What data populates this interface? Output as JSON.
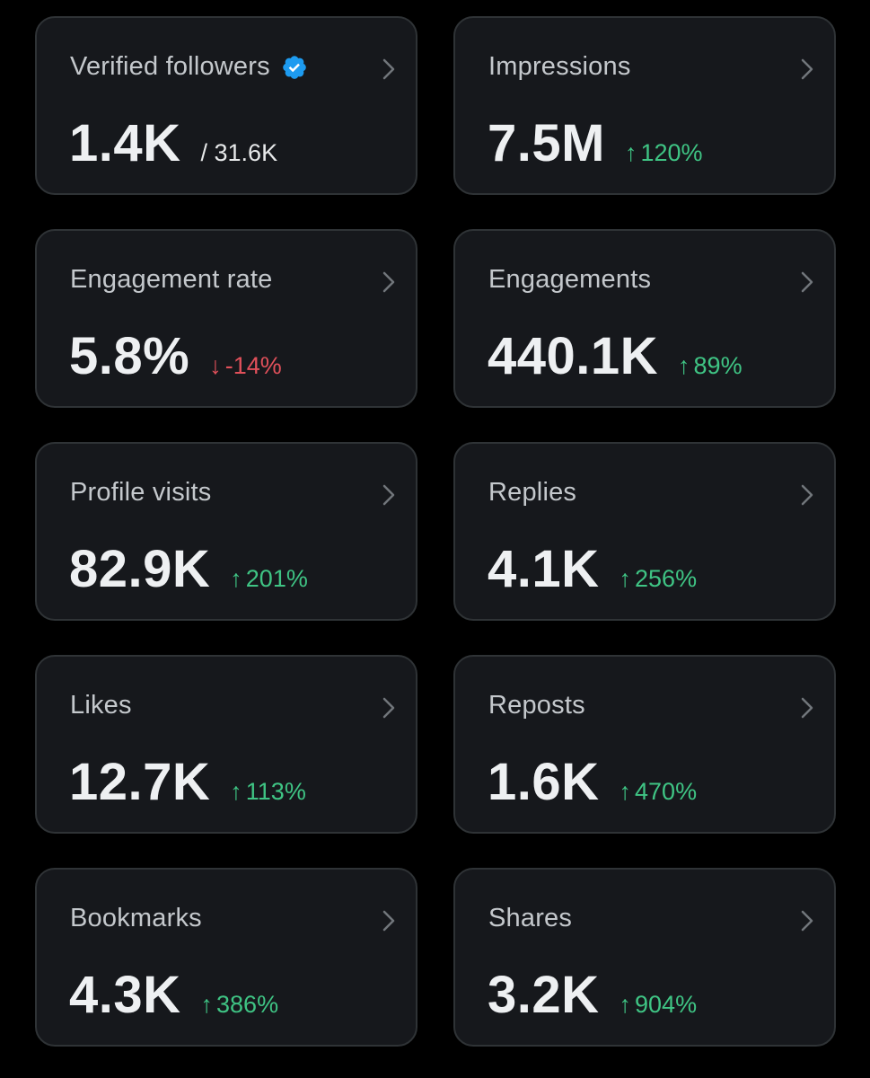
{
  "colors": {
    "background": "#000000",
    "card": "#16181c",
    "border": "#2f3336",
    "up": "#3fc484",
    "down": "#e0505a",
    "verified": "#1d9bf0"
  },
  "cards": [
    {
      "label": "Verified followers",
      "value": "1.4K",
      "sub_value": "/ 31.6K",
      "verified_icon": "verified-badge-icon"
    },
    {
      "label": "Impressions",
      "value": "7.5M",
      "arrow": "↑",
      "change": "120%",
      "direction": "up"
    },
    {
      "label": "Engagement rate",
      "value": "5.8%",
      "arrow": "↓",
      "change": "-14%",
      "direction": "down"
    },
    {
      "label": "Engagements",
      "value": "440.1K",
      "arrow": "↑",
      "change": "89%",
      "direction": "up"
    },
    {
      "label": "Profile visits",
      "value": "82.9K",
      "arrow": "↑",
      "change": "201%",
      "direction": "up"
    },
    {
      "label": "Replies",
      "value": "4.1K",
      "arrow": "↑",
      "change": "256%",
      "direction": "up"
    },
    {
      "label": "Likes",
      "value": "12.7K",
      "arrow": "↑",
      "change": "113%",
      "direction": "up"
    },
    {
      "label": "Reposts",
      "value": "1.6K",
      "arrow": "↑",
      "change": "470%",
      "direction": "up"
    },
    {
      "label": "Bookmarks",
      "value": "4.3K",
      "arrow": "↑",
      "change": "386%",
      "direction": "up"
    },
    {
      "label": "Shares",
      "value": "3.2K",
      "arrow": "↑",
      "change": "904%",
      "direction": "up"
    }
  ]
}
